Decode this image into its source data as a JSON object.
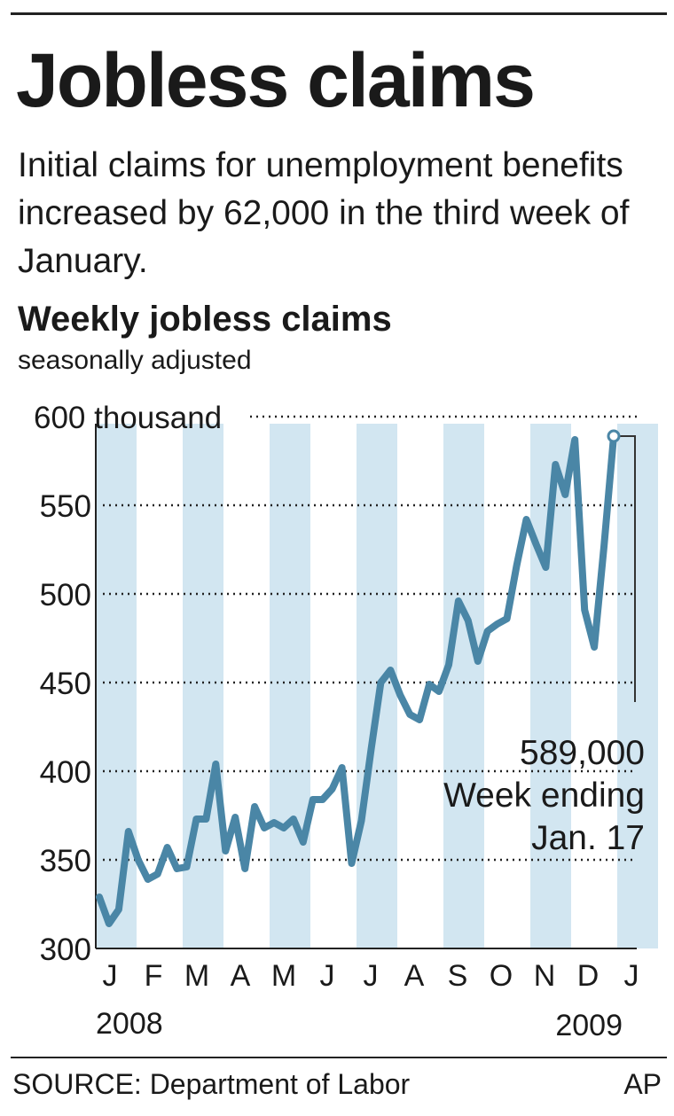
{
  "graphic": {
    "title": "Jobless claims",
    "subtitle": "Initial claims for unemployment benefits increased by 62,000 in the third week of January.",
    "source": "SOURCE: Department of Labor",
    "credit": "AP"
  },
  "colors": {
    "line": "#4a86a6",
    "band": "#d2e6f1",
    "text": "#1a1a1a"
  },
  "chart_data": {
    "type": "line",
    "title": "Weekly jobless claims",
    "subtitle": "seasonally adjusted",
    "ylabel": "",
    "xlabel": "",
    "ylim": [
      300,
      600
    ],
    "y_ticks": [
      300,
      350,
      400,
      450,
      500,
      550,
      600
    ],
    "y_tick_labels": [
      "300",
      "350",
      "400",
      "450",
      "500",
      "550",
      "600 thousand"
    ],
    "x_tick_labels": [
      "J",
      "F",
      "M",
      "A",
      "M",
      "J",
      "J",
      "A",
      "S",
      "O",
      "N",
      "D",
      "J"
    ],
    "year_labels": [
      "2008",
      "2009"
    ],
    "grid": "dotted horizontal",
    "series": [
      {
        "values": [
          329,
          314,
          322,
          366,
          350,
          339,
          342,
          357,
          345,
          346,
          373,
          373,
          404,
          355,
          374,
          345,
          380,
          368,
          371,
          368,
          373,
          360,
          384,
          384,
          390,
          402,
          348,
          372,
          412,
          450,
          457,
          443,
          432,
          429,
          449,
          445,
          460,
          496,
          485,
          462,
          479,
          483,
          486,
          516,
          542,
          528,
          515,
          573,
          556,
          587,
          491,
          470,
          527,
          589
        ]
      }
    ],
    "annotation": {
      "value": "589,000",
      "line2": "Week ending",
      "line3": "Jan. 17"
    }
  }
}
